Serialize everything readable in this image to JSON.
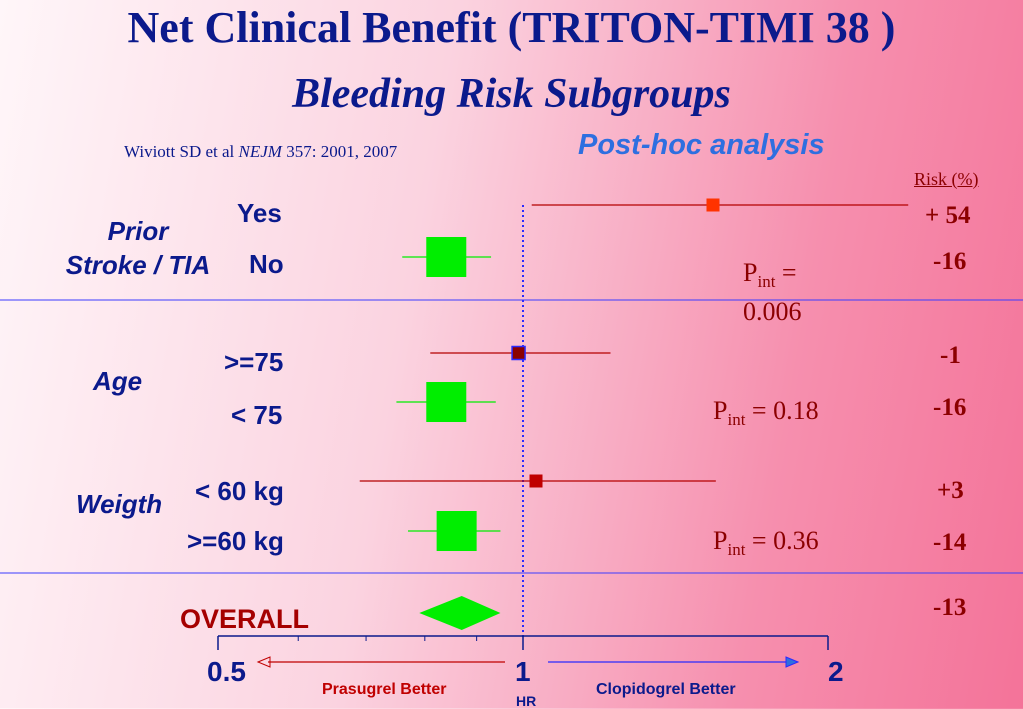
{
  "title": "Net Clinical Benefit (TRITON-TIMI 38 )",
  "subtitle": "Bleeding Risk Subgroups",
  "citation": {
    "authors": "Wiviott SD et al",
    "journal": "NEJM",
    "ref": "357: 2001, 2007"
  },
  "analysis_note": "Post-hoc analysis",
  "risk_header": "Risk (%)",
  "groups": [
    {
      "label_line1": "Prior",
      "label_line2": "Stroke / TIA",
      "subgroups": [
        {
          "label": "Yes",
          "risk": "+ 54"
        },
        {
          "label": "No",
          "risk": "-16"
        }
      ],
      "pint_prefix": "P",
      "pint_sub": "int",
      "pint_line1": " =",
      "pint_line2": "0.006"
    },
    {
      "label": "Age",
      "subgroups": [
        {
          "label": ">=75",
          "risk": "-1"
        },
        {
          "label": "< 75",
          "risk": "-16"
        }
      ],
      "pint_prefix": "P",
      "pint_sub": "int",
      "pint_value": " = 0.18"
    },
    {
      "label": "Weigth",
      "subgroups": [
        {
          "label": "< 60 kg",
          "risk": "+3"
        },
        {
          "label": ">=60 kg",
          "risk": "-14"
        }
      ],
      "pint_prefix": "P",
      "pint_sub": "int",
      "pint_value": " = 0.36"
    }
  ],
  "overall": {
    "label": "OVERALL",
    "risk": "-13"
  },
  "axis": {
    "ticks": [
      "0.5",
      "1",
      "2"
    ],
    "label": "HR",
    "left_direction": "Prasugrel Better",
    "right_direction": "Clopidogrel Better"
  },
  "colors": {
    "title": "#0b1a8c",
    "accent": "#2e6fe0",
    "values": "#8b0000",
    "prasugrel_better": "#00ee00",
    "clopidogrel_better": "#ff3300"
  },
  "chart_data": {
    "type": "forest",
    "x_scale": "log",
    "xlim": [
      0.5,
      2
    ],
    "reference_line": 1,
    "xlabel": "HR",
    "rows": [
      {
        "group": "Prior Stroke / TIA",
        "subgroup": "Yes",
        "hr": 1.54,
        "ci": [
          1.02,
          2.4
        ],
        "risk_pct": 54,
        "marker": "small-red"
      },
      {
        "group": "Prior Stroke / TIA",
        "subgroup": "No",
        "hr": 0.84,
        "ci": [
          0.76,
          0.93
        ],
        "risk_pct": -16,
        "marker": "large-green"
      },
      {
        "group": "Age",
        "subgroup": ">=75",
        "hr": 0.99,
        "ci": [
          0.81,
          1.22
        ],
        "risk_pct": -1,
        "marker": "small-red"
      },
      {
        "group": "Age",
        "subgroup": "< 75",
        "hr": 0.84,
        "ci": [
          0.75,
          0.94
        ],
        "risk_pct": -16,
        "marker": "large-green"
      },
      {
        "group": "Weigth",
        "subgroup": "< 60 kg",
        "hr": 1.03,
        "ci": [
          0.69,
          1.55
        ],
        "risk_pct": 3,
        "marker": "small-red"
      },
      {
        "group": "Weigth",
        "subgroup": ">=60 kg",
        "hr": 0.86,
        "ci": [
          0.77,
          0.95
        ],
        "risk_pct": -14,
        "marker": "large-green"
      }
    ],
    "overall": {
      "hr": 0.87,
      "ci": [
        0.79,
        0.95
      ],
      "risk_pct": -13,
      "marker": "diamond"
    },
    "p_interaction": [
      0.006,
      0.18,
      0.36
    ]
  }
}
